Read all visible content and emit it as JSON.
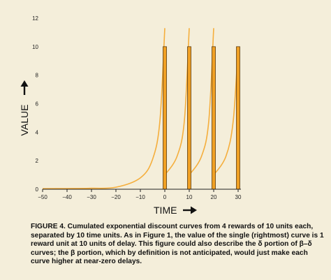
{
  "chart_data": {
    "type": "line",
    "xlabel": "TIME",
    "ylabel": "VALUE",
    "xlim": [
      -50,
      30
    ],
    "ylim": [
      0,
      12
    ],
    "xticks": [
      -50,
      -40,
      -30,
      -20,
      -10,
      0,
      10,
      20,
      30
    ],
    "yticks": [
      0,
      2,
      4,
      6,
      8,
      10,
      12
    ],
    "grid": false,
    "rewards": [
      {
        "x": 0,
        "value": 10
      },
      {
        "x": 10,
        "value": 10
      },
      {
        "x": 20,
        "value": 10
      },
      {
        "x": 30,
        "value": 10
      }
    ],
    "curve_points": [
      {
        "x": -50,
        "y": 0.04
      },
      {
        "x": -40,
        "y": 0.05
      },
      {
        "x": -30,
        "y": 0.07
      },
      {
        "x": -20,
        "y": 0.14
      },
      {
        "x": -10,
        "y": 0.8
      },
      {
        "x": -5,
        "y": 2.1
      },
      {
        "x": -2,
        "y": 4.8
      },
      {
        "x": 0,
        "y": 11.3
      },
      {
        "x": 0,
        "y": 1.0
      },
      {
        "x": 5,
        "y": 2.3
      },
      {
        "x": 8,
        "y": 4.8
      },
      {
        "x": 10,
        "y": 11.3
      },
      {
        "x": 10,
        "y": 1.0
      },
      {
        "x": 15,
        "y": 2.3
      },
      {
        "x": 18,
        "y": 4.8
      },
      {
        "x": 20,
        "y": 11.3
      },
      {
        "x": 20,
        "y": 1.0
      },
      {
        "x": 25,
        "y": 2.3
      },
      {
        "x": 28,
        "y": 4.8
      },
      {
        "x": 30,
        "y": 10.0
      }
    ],
    "colors": {
      "bar_fill": "#f0a024",
      "bar_stroke": "#5a3a10",
      "curve": "#f5ae3c",
      "axis": "#222222",
      "background": "#f4eeda"
    }
  },
  "caption": "FIGURE 4. Cumulated exponential discount curves from 4 rewards of 10 units each, separated by 10 time units. As in Figure 1, the value of the single (rightmost) curve is 1 reward unit at 10 units of delay. This figure could also describe the δ portion of β–δ curves; the β portion, which by definition is not anticipated, would just make each curve higher at near-zero delays."
}
